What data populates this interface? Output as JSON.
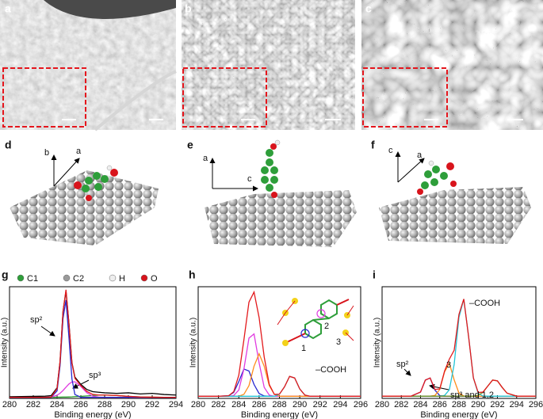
{
  "panel_labels": [
    "a",
    "b",
    "c",
    "d",
    "e",
    "f",
    "g",
    "h",
    "i"
  ],
  "legend": [
    {
      "label": "C1",
      "color": "#2e9e3a"
    },
    {
      "label": "C2",
      "color": "#9a9a9a"
    },
    {
      "label": "H",
      "color": "#eeeeee"
    },
    {
      "label": "O",
      "color": "#d8141c"
    }
  ],
  "lattice_axes": {
    "d": [
      "b",
      "a"
    ],
    "e": [
      "a",
      "c"
    ],
    "f": [
      "c",
      "a"
    ]
  },
  "chart_data": [
    {
      "type": "line",
      "x_label": "Binding energy (eV)",
      "y_label": "Intensity (a.u.)",
      "x": [
        280,
        282,
        283,
        283.5,
        284,
        284.25,
        284.5,
        284.75,
        285,
        285.25,
        285.5,
        286,
        286.5,
        287,
        287.5,
        288,
        289,
        290,
        291,
        292,
        293,
        294
      ],
      "xlim": [
        280,
        294
      ],
      "xticks": [
        280,
        282,
        284,
        286,
        288,
        290,
        292,
        294
      ],
      "ylim": [
        0,
        100
      ],
      "series": [
        {
          "color": "#2ca02c",
          "values": [
            1,
            1,
            1,
            1,
            1.1,
            1.1,
            1.2,
            1.2,
            1.3,
            1.4,
            1.6,
            1.8,
            2.2,
            2.6,
            2.9,
            3,
            2.6,
            1.8,
            1.3,
            1.1,
            1,
            1
          ]
        },
        {
          "color": "#e03ce0",
          "values": [
            1,
            1,
            1,
            1.2,
            2.9,
            4.6,
            7.1,
            10.1,
            12.9,
            14.7,
            14.9,
            10.7,
            5.1,
            2,
            1.1,
            1,
            1,
            1,
            1,
            1,
            1,
            1
          ]
        },
        {
          "color": "#2828d0",
          "values": [
            1,
            1,
            1,
            1,
            6.8,
            29.5,
            71.6,
            88,
            54.4,
            17.4,
            3.5,
            1,
            1,
            1,
            1,
            1,
            1,
            1,
            1,
            1,
            1,
            1
          ]
        },
        {
          "color": "#000000",
          "values": [
            1.5,
            1.8,
            2,
            2.5,
            9.5,
            33,
            78,
            96,
            67,
            32,
            19,
            12.5,
            8,
            6,
            5.5,
            5,
            4.5,
            5,
            4,
            4.5,
            3.5,
            3
          ]
        },
        {
          "color": "#e3191c",
          "values": [
            1,
            1,
            1,
            1.2,
            8.8,
            33.2,
            77.9,
            97.3,
            66.6,
            31.5,
            18,
            11.5,
            6.3,
            3.6,
            3,
            3,
            2.6,
            1.8,
            1.3,
            1.1,
            1,
            1
          ]
        }
      ],
      "annotations": [
        "sp²",
        "sp³"
      ]
    },
    {
      "type": "line",
      "x_label": "Binding energy (eV)",
      "y_label": "Intensity (a.u.)",
      "x": [
        280,
        282,
        283,
        283.5,
        284,
        284.5,
        285,
        285.5,
        286,
        286.5,
        287,
        287.5,
        288,
        288.5,
        289,
        289.5,
        290,
        290.5,
        291,
        292,
        294,
        296
      ],
      "xlim": [
        280,
        296
      ],
      "xticks": [
        280,
        282,
        284,
        286,
        288,
        290,
        292,
        294,
        296
      ],
      "ylim": [
        0,
        105
      ],
      "series": [
        {
          "color": "#2828d0",
          "values": [
            2,
            2,
            2.5,
            5.6,
            15.8,
            27.6,
            25.8,
            13.1,
            4.6,
            2.3,
            2,
            2,
            2,
            2,
            2,
            2,
            2,
            2,
            2,
            2,
            2,
            2
          ]
        },
        {
          "color": "#e03ce0",
          "values": [
            2,
            2,
            2,
            2.7,
            7.9,
            27.5,
            56.7,
            60.6,
            33.4,
            10.4,
            3.1,
            2,
            2,
            2,
            2,
            2,
            2,
            2,
            2,
            2,
            2,
            2
          ]
        },
        {
          "color": "#ff8c1a",
          "values": [
            2,
            2,
            2,
            2,
            2.1,
            3.8,
            12,
            30.3,
            42,
            30.3,
            12,
            3.8,
            2.1,
            2,
            2,
            2,
            2,
            2,
            2,
            2,
            2,
            2
          ]
        },
        {
          "color": "#22c4d6",
          "values": [
            2,
            2,
            2,
            2,
            2,
            2,
            2,
            2,
            2,
            2,
            2,
            2,
            3.9,
            10.9,
            20.7,
            19.2,
            8.9,
            3.2,
            2,
            2,
            2,
            2
          ]
        },
        {
          "color": "#e3191c",
          "values": [
            2,
            2,
            2.5,
            6.3,
            21.8,
            54.9,
            90.5,
            100,
            76,
            39,
            13.1,
            3.8,
            4,
            10.9,
            20.7,
            19.2,
            8.9,
            3.2,
            2,
            2,
            2,
            2
          ]
        }
      ],
      "annotations": [
        "–COOH",
        "1",
        "2",
        "3"
      ]
    },
    {
      "type": "line",
      "x_label": "Binding energy (eV)",
      "y_label": "Intensity (a.u.)",
      "x": [
        280,
        282,
        283,
        284,
        284.5,
        285,
        285.5,
        286,
        286.5,
        287,
        287.5,
        288,
        288.5,
        289,
        289.5,
        290,
        290.5,
        291,
        291.5,
        292,
        292.5,
        293,
        294,
        296
      ],
      "xlim": [
        280,
        296
      ],
      "xticks": [
        280,
        282,
        284,
        286,
        288,
        290,
        292,
        294,
        296
      ],
      "ylim": [
        0,
        100
      ],
      "series": [
        {
          "color": "#2828d0",
          "values": [
            2,
            2,
            2,
            5.7,
            16.4,
            18.3,
            7.4,
            2.5,
            2,
            2,
            2,
            2,
            2,
            2,
            2,
            2,
            2,
            2,
            2,
            2,
            2,
            2,
            2,
            2
          ]
        },
        {
          "color": "#ff8c1a",
          "values": [
            2,
            2,
            2,
            2,
            2,
            2,
            2.6,
            8,
            23.8,
            31.4,
            16.6,
            4.7,
            2.2,
            2,
            2,
            2,
            2,
            2,
            2,
            2,
            2,
            2,
            2,
            2
          ]
        },
        {
          "color": "#22c4d6",
          "values": [
            2,
            2,
            2,
            2,
            2,
            2,
            2,
            2,
            2.6,
            7.8,
            30.5,
            72.6,
            88.8,
            55.4,
            18.4,
            4.5,
            2.2,
            2,
            2,
            2,
            2,
            2,
            2,
            2
          ]
        },
        {
          "color": "#6b8a22",
          "values": [
            2,
            2,
            2,
            2,
            2,
            2,
            2,
            2,
            2,
            2,
            2,
            2,
            2,
            2,
            2,
            2.8,
            5.5,
            11.1,
            16.4,
            15.7,
            9.8,
            4.7,
            2,
            2
          ]
        },
        {
          "color": "#e3191c",
          "values": [
            2,
            2,
            2,
            5.7,
            16.4,
            18.3,
            8,
            8.5,
            24.4,
            35.2,
            43.1,
            75.3,
            89,
            55.4,
            18.4,
            5.3,
            5.7,
            11.1,
            16.4,
            15.7,
            9.8,
            4.7,
            2,
            2
          ]
        }
      ],
      "annotations": [
        "–COOH",
        "sp²",
        "3",
        "sp³ and 1,2"
      ]
    }
  ]
}
